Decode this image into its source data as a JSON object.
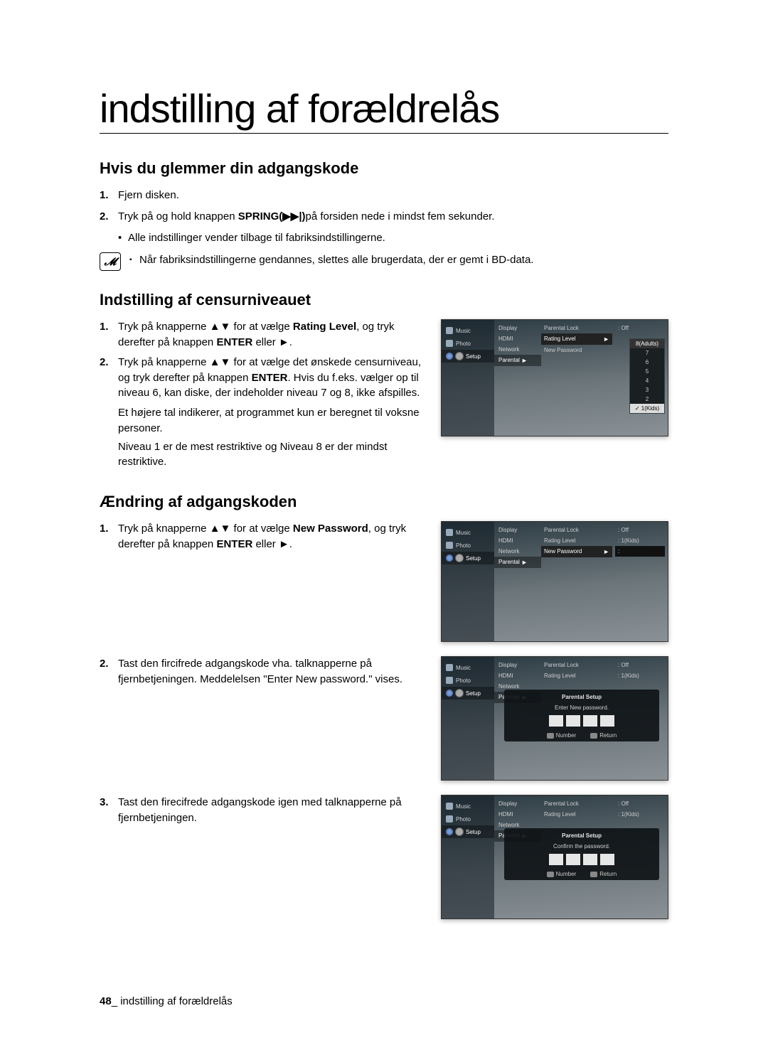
{
  "page_title": "indstilling af forældrelås",
  "sections": {
    "forgot": {
      "title": "Hvis du glemmer din adgangskode",
      "step1": "Fjern disken.",
      "step2_a": "Tryk på og hold knappen ",
      "step2_bold": "SPRING",
      "step2_sym": " (▶▶|) ",
      "step2_b": "på forsiden nede i mindst fem sekunder.",
      "bullet": "Alle indstillinger vender tilbage til fabriksindstillingerne.",
      "note": "Når fabriksindstillingerne gendannes, slettes alle brugerdata, der er gemt i BD-data."
    },
    "rating": {
      "title": "Indstilling af censurniveauet",
      "step1_a": "Tryk på knapperne ▲▼ for at vælge ",
      "step1_bold": "Rating Level",
      "step1_b": ", og tryk derefter på knappen ",
      "step1_bold2": "ENTER",
      "step1_c": " eller ►.",
      "step2_a": "Tryk på knapperne ▲▼ for at vælge det ønskede censurniveau, og tryk derefter på knappen ",
      "step2_bold": "ENTER",
      "step2_b": ". Hvis du f.eks. vælger op til niveau 6, kan diske, der indeholder niveau 7 og 8, ikke afspilles.",
      "cont1": "Et højere tal indikerer, at programmet kun er beregnet til voksne personer.",
      "cont2": "Niveau 1 er de mest restriktive og Niveau 8 er der mindst restriktive."
    },
    "password": {
      "title": "Ændring af adgangskoden",
      "step1_a": "Tryk på knapperne ▲▼ for at vælge ",
      "step1_bold": "New Password",
      "step1_b": ", og tryk derefter på knappen ",
      "step1_bold2": "ENTER",
      "step1_c": " eller ►.",
      "step2": "Tast den fircifrede adgangskode vha. talknapperne på fjernbetjeningen. Meddelelsen \"Enter New password.\" vises.",
      "step3": "Tast den firecifrede adgangskode igen med talknapperne på fjernbetjeningen."
    }
  },
  "sidebar_items": [
    {
      "label": "Music"
    },
    {
      "label": "Photo"
    },
    {
      "label": "Setup",
      "selected": true
    }
  ],
  "menu1_items": [
    {
      "label": "Display"
    },
    {
      "label": "HDMI"
    },
    {
      "label": "Network"
    },
    {
      "label": "Parental",
      "selected": true
    }
  ],
  "menu2_rating": [
    {
      "label": "Parental Lock",
      "value": "Off"
    },
    {
      "label": "Rating Level",
      "value": "",
      "selected": true
    },
    {
      "label": "New Password",
      "value": ""
    }
  ],
  "menu2_newpw": [
    {
      "label": "Parental Lock",
      "value": "Off"
    },
    {
      "label": "Rating Level",
      "value": "1(Kids)"
    },
    {
      "label": "New Password",
      "value": "",
      "selected": true
    }
  ],
  "dropdown_levels": [
    "8(Adults)",
    "7",
    "6",
    "5",
    "4",
    "3",
    "2",
    "1(Kids)"
  ],
  "modal_enter": {
    "title": "Parental Setup",
    "msg": "Enter New password.",
    "btn_number": "Number",
    "btn_return": "Return"
  },
  "modal_confirm": {
    "title": "Parental Setup",
    "msg": "Confirm the password.",
    "btn_number": "Number",
    "btn_return": "Return"
  },
  "footer": {
    "page_num": "48",
    "sep": "_",
    "text": "indstilling af forældrelås"
  },
  "colors": {
    "text": "#000000",
    "screenshot_bg_top": "#2b3a42",
    "screenshot_bg_bottom": "#8a9196",
    "sidebar_bg": "#1a252b",
    "selected_bg": "#222222",
    "pw_box": "#e6e6e6"
  }
}
